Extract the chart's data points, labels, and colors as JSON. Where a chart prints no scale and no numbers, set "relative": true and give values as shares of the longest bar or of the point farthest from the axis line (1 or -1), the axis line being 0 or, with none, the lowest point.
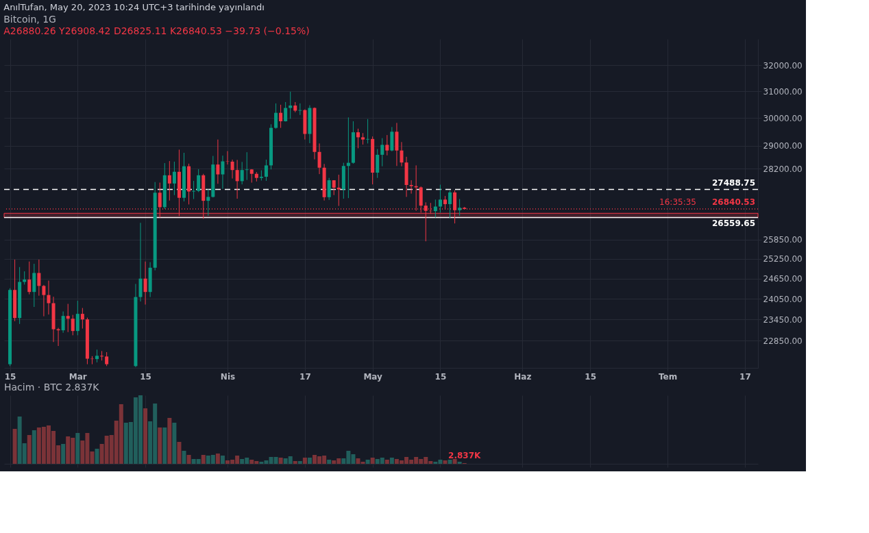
{
  "chart_data": [
    {
      "type": "candlestick",
      "title": "Bitcoin, 1G",
      "subtitle": "A26880.26  Y26908.42  D26825.11  K26840.53  −39.73 (−0.15%)",
      "x": [
        "2023-02-15",
        "2023-02-16",
        "2023-02-17",
        "2023-02-18",
        "2023-02-19",
        "2023-02-20",
        "2023-02-21",
        "2023-02-22",
        "2023-02-23",
        "2023-02-24",
        "2023-02-25",
        "2023-02-26",
        "2023-02-27",
        "2023-02-28",
        "2023-03-01",
        "2023-03-02",
        "2023-03-03",
        "2023-03-04",
        "2023-03-05",
        "2023-03-06",
        "2023-03-07",
        "2023-03-13",
        "2023-03-14",
        "2023-03-15",
        "2023-03-16",
        "2023-03-17",
        "2023-03-18",
        "2023-03-19",
        "2023-03-20",
        "2023-03-21",
        "2023-03-22",
        "2023-03-23",
        "2023-03-24",
        "2023-03-25",
        "2023-03-26",
        "2023-03-27",
        "2023-03-28",
        "2023-03-29",
        "2023-03-30",
        "2023-03-31",
        "2023-04-01",
        "2023-04-02",
        "2023-04-03",
        "2023-04-04",
        "2023-04-05",
        "2023-04-06",
        "2023-04-07",
        "2023-04-08",
        "2023-04-09",
        "2023-04-10",
        "2023-04-11",
        "2023-04-12",
        "2023-04-13",
        "2023-04-14",
        "2023-04-15",
        "2023-04-16",
        "2023-04-17",
        "2023-04-18",
        "2023-04-19",
        "2023-04-20",
        "2023-04-21",
        "2023-04-22",
        "2023-04-23",
        "2023-04-24",
        "2023-04-25",
        "2023-04-26",
        "2023-04-27",
        "2023-04-28",
        "2023-04-29",
        "2023-04-30",
        "2023-05-01",
        "2023-05-02",
        "2023-05-03",
        "2023-05-04",
        "2023-05-05",
        "2023-05-06",
        "2023-05-07",
        "2023-05-08",
        "2023-05-09",
        "2023-05-10",
        "2023-05-11",
        "2023-05-12",
        "2023-05-13",
        "2023-05-14",
        "2023-05-15",
        "2023-05-16",
        "2023-05-17",
        "2023-05-18",
        "2023-05-19",
        "2023-05-20"
      ],
      "ohlc": [
        [
          22200,
          24360,
          22150,
          24310
        ],
        [
          24310,
          25230,
          23400,
          23490
        ],
        [
          23490,
          25000,
          23320,
          24550
        ],
        [
          24550,
          24870,
          24470,
          24620
        ],
        [
          24620,
          25170,
          24180,
          24250
        ],
        [
          24250,
          25100,
          23810,
          24820
        ],
        [
          24820,
          25230,
          24140,
          24430
        ],
        [
          24430,
          24460,
          23540,
          24160
        ],
        [
          24160,
          24590,
          23590,
          23920
        ],
        [
          23920,
          24110,
          22810,
          23170
        ],
        [
          23170,
          23210,
          22700,
          23140
        ],
        [
          23140,
          23680,
          23070,
          23550
        ],
        [
          23550,
          23900,
          23090,
          23470
        ],
        [
          23470,
          23580,
          23000,
          23120
        ],
        [
          23120,
          23990,
          23000,
          23610
        ],
        [
          23610,
          23780,
          23190,
          23450
        ],
        [
          23450,
          23500,
          22200,
          22350
        ],
        [
          22350,
          22420,
          22200,
          22340
        ],
        [
          22340,
          22600,
          22250,
          22430
        ],
        [
          22430,
          22560,
          22300,
          22410
        ],
        [
          22410,
          22530,
          22150,
          22200
        ],
        [
          22150,
          24490,
          22120,
          24100
        ],
        [
          24100,
          26390,
          23970,
          24650
        ],
        [
          24650,
          25170,
          23880,
          24250
        ],
        [
          24250,
          25150,
          24100,
          24980
        ],
        [
          24980,
          27740,
          24900,
          27380
        ],
        [
          27380,
          27720,
          26560,
          26900
        ],
        [
          26900,
          28390,
          26840,
          27970
        ],
        [
          27970,
          28460,
          27120,
          27690
        ],
        [
          27690,
          28440,
          27300,
          28090
        ],
        [
          28090,
          28860,
          26610,
          27210
        ],
        [
          27210,
          28750,
          27090,
          28280
        ],
        [
          28280,
          28370,
          26990,
          27420
        ],
        [
          27420,
          27780,
          27170,
          27440
        ],
        [
          27440,
          28180,
          27400,
          27970
        ],
        [
          27970,
          28020,
          26520,
          27110
        ],
        [
          27110,
          27500,
          26620,
          27240
        ],
        [
          27240,
          28640,
          27220,
          28340
        ],
        [
          28340,
          29220,
          27680,
          28000
        ],
        [
          28000,
          28650,
          27510,
          28450
        ],
        [
          28450,
          28810,
          28340,
          28440
        ],
        [
          28440,
          28510,
          27860,
          28150
        ],
        [
          28150,
          28500,
          27180,
          27770
        ],
        [
          27770,
          28430,
          27660,
          28150
        ],
        [
          28150,
          28770,
          27810,
          28170
        ],
        [
          28170,
          28180,
          27720,
          28020
        ],
        [
          28020,
          28080,
          27760,
          27880
        ],
        [
          27880,
          28140,
          27790,
          27920
        ],
        [
          27920,
          28510,
          27780,
          28310
        ],
        [
          28310,
          29770,
          28170,
          29640
        ],
        [
          29640,
          30540,
          29610,
          30190
        ],
        [
          30190,
          30490,
          29640,
          29880
        ],
        [
          29880,
          30590,
          29870,
          30370
        ],
        [
          30370,
          30980,
          29970,
          30460
        ],
        [
          30460,
          30590,
          30210,
          30270
        ],
        [
          30270,
          30540,
          30110,
          30290
        ],
        [
          30290,
          30320,
          29220,
          29420
        ],
        [
          29420,
          30470,
          29090,
          30370
        ],
        [
          30370,
          30390,
          28520,
          28780
        ],
        [
          28780,
          29080,
          28010,
          28230
        ],
        [
          28230,
          28360,
          27120,
          27230
        ],
        [
          27230,
          27880,
          27140,
          27800
        ],
        [
          27800,
          27800,
          27300,
          27550
        ],
        [
          27550,
          27990,
          26940,
          27490
        ],
        [
          27490,
          28400,
          27180,
          28290
        ],
        [
          28290,
          30020,
          27200,
          28400
        ],
        [
          28400,
          29880,
          28370,
          29480
        ],
        [
          29480,
          29610,
          28910,
          29300
        ],
        [
          29300,
          29450,
          29040,
          29220
        ],
        [
          29220,
          29960,
          29080,
          29240
        ],
        [
          29240,
          29330,
          27660,
          28060
        ],
        [
          28060,
          28880,
          27880,
          28680
        ],
        [
          28680,
          29270,
          28280,
          29030
        ],
        [
          29030,
          29380,
          28660,
          28830
        ],
        [
          28830,
          29670,
          28800,
          29500
        ],
        [
          29500,
          29820,
          28290,
          28830
        ],
        [
          28830,
          29130,
          28280,
          28410
        ],
        [
          28410,
          28610,
          27240,
          27640
        ],
        [
          27640,
          27800,
          27350,
          27600
        ],
        [
          27600,
          28310,
          26780,
          27560
        ],
        [
          27560,
          27590,
          26720,
          26950
        ],
        [
          26950,
          27060,
          25800,
          26780
        ],
        [
          26780,
          27040,
          26680,
          26770
        ],
        [
          26770,
          27150,
          26560,
          26920
        ],
        [
          26920,
          27650,
          26720,
          27150
        ],
        [
          27150,
          27270,
          26820,
          27000
        ],
        [
          27000,
          27450,
          26540,
          27390
        ],
        [
          27390,
          27460,
          26370,
          26800
        ],
        [
          26800,
          27170,
          26620,
          26880.26
        ],
        [
          26880.26,
          26908.42,
          26825.11,
          26840.53
        ]
      ],
      "colors": [
        "#089981",
        "#f23645",
        "#089981",
        "#089981",
        "#f23645",
        "#089981",
        "#f23645",
        "#f23645",
        "#f23645",
        "#f23645",
        "#f23645",
        "#089981",
        "#f23645",
        "#f23645",
        "#089981",
        "#f23645",
        "#f23645",
        "#f23645",
        "#089981",
        "#f23645",
        "#f23645",
        "#089981",
        "#089981",
        "#f23645",
        "#089981",
        "#089981",
        "#f23645",
        "#089981",
        "#f23645",
        "#089981",
        "#f23645",
        "#089981",
        "#f23645",
        "#089981",
        "#089981",
        "#f23645",
        "#089981",
        "#089981",
        "#f23645",
        "#089981",
        "#f23645",
        "#f23645",
        "#f23645",
        "#089981",
        "#089981",
        "#f23645",
        "#f23645",
        "#089981",
        "#089981",
        "#089981",
        "#089981",
        "#f23645",
        "#089981",
        "#089981",
        "#f23645",
        "#089981",
        "#f23645",
        "#089981",
        "#f23645",
        "#f23645",
        "#f23645",
        "#089981",
        "#f23645",
        "#f23645",
        "#089981",
        "#089981",
        "#089981",
        "#f23645",
        "#f23645",
        "#089981",
        "#f23645",
        "#089981",
        "#089981",
        "#f23645",
        "#089981",
        "#f23645",
        "#f23645",
        "#f23645",
        "#f23645",
        "#f23645",
        "#f23645",
        "#f23645",
        "#f23645",
        "#089981",
        "#089981",
        "#f23645",
        "#089981",
        "#f23645",
        "#089981",
        "#f23645"
      ],
      "log": "y",
      "ylim": [
        22100,
        33040
      ],
      "yticks": [
        {
          "value": 22850,
          "label": "22850.00"
        },
        {
          "value": 23450,
          "label": "23450.00"
        },
        {
          "value": 24050,
          "label": "24050.00"
        },
        {
          "value": 24650,
          "label": "24650.00"
        },
        {
          "value": 25250,
          "label": "25250.00"
        },
        {
          "value": 25850,
          "label": "25850.00"
        },
        {
          "value": 28200,
          "label": "28200.00"
        },
        {
          "value": 29000,
          "label": "29000.00"
        },
        {
          "value": 30000,
          "label": "30000.00"
        },
        {
          "value": 31000,
          "label": "31000.00"
        },
        {
          "value": 32000,
          "label": "32000.00"
        }
      ],
      "xlim": [
        "2023-02-14T12:00",
        "2023-07-19"
      ],
      "xticks": [
        {
          "value": "2023-02-15",
          "label": "15"
        },
        {
          "value": "2023-03-01",
          "label": "Mar"
        },
        {
          "value": "2023-03-15",
          "label": "15"
        },
        {
          "value": "2023-04-01",
          "label": "Nis"
        },
        {
          "value": "2023-04-17",
          "label": "17"
        },
        {
          "value": "2023-05-01",
          "label": "May"
        },
        {
          "value": "2023-05-15",
          "label": "15"
        },
        {
          "value": "2023-06-01",
          "label": "Haz"
        },
        {
          "value": "2023-06-15",
          "label": "15"
        },
        {
          "value": "2023-07-01",
          "label": "Tem"
        },
        {
          "value": "2023-07-17",
          "label": "17"
        }
      ],
      "grid": true,
      "ref_lines": [
        {
          "axis": "y",
          "value": 27488.75,
          "label": "27488.75",
          "color": "#ffffff",
          "line_style": "dashed"
        },
        {
          "axis": "y",
          "value": 26840.53,
          "label": "26840.53",
          "color": "#f23645",
          "line_style": "dotted"
        },
        {
          "axis": "y",
          "value": 26559.65,
          "label": "26559.65",
          "color": "#ffffff",
          "line_style": "solid"
        }
      ],
      "bands": [
        {
          "axis": "y",
          "from": 26560,
          "to": 26700,
          "color": "#f23645"
        }
      ],
      "annotations": [
        "AnılTufan, May 20, 2023 10:24 UTC+3 tarihinde yayınlandı",
        {
          "text": "16:35:35",
          "y": 26840.53
        }
      ]
    },
    {
      "type": "bar",
      "title": "Hacim · BTC 2.837K",
      "relative": true,
      "x": [
        "2023-02-16",
        "2023-02-17",
        "2023-02-18",
        "2023-02-19",
        "2023-02-20",
        "2023-02-21",
        "2023-02-22",
        "2023-02-23",
        "2023-02-24",
        "2023-02-25",
        "2023-02-26",
        "2023-02-27",
        "2023-02-28",
        "2023-03-01",
        "2023-03-02",
        "2023-03-03",
        "2023-03-04",
        "2023-03-05",
        "2023-03-06",
        "2023-03-07",
        "2023-03-08",
        "2023-03-09",
        "2023-03-10",
        "2023-03-11",
        "2023-03-12",
        "2023-03-13",
        "2023-03-14",
        "2023-03-15",
        "2023-03-16",
        "2023-03-17",
        "2023-03-18",
        "2023-03-19",
        "2023-03-20",
        "2023-03-21",
        "2023-03-22",
        "2023-03-23",
        "2023-03-24",
        "2023-03-25",
        "2023-03-26",
        "2023-03-27",
        "2023-03-28",
        "2023-03-29",
        "2023-03-30",
        "2023-03-31",
        "2023-04-01",
        "2023-04-02",
        "2023-04-03",
        "2023-04-04",
        "2023-04-05",
        "2023-04-06",
        "2023-04-07",
        "2023-04-08",
        "2023-04-09",
        "2023-04-10",
        "2023-04-11",
        "2023-04-12",
        "2023-04-13",
        "2023-04-14",
        "2023-04-15",
        "2023-04-16",
        "2023-04-17",
        "2023-04-18",
        "2023-04-19",
        "2023-04-20",
        "2023-04-21",
        "2023-04-22",
        "2023-04-23",
        "2023-04-24",
        "2023-04-25",
        "2023-04-26",
        "2023-04-27",
        "2023-04-28",
        "2023-04-29",
        "2023-04-30",
        "2023-05-01",
        "2023-05-02",
        "2023-05-03",
        "2023-05-04",
        "2023-05-05",
        "2023-05-06",
        "2023-05-07",
        "2023-05-08",
        "2023-05-09",
        "2023-05-10",
        "2023-05-11",
        "2023-05-12",
        "2023-05-13",
        "2023-05-14",
        "2023-05-15",
        "2023-05-16",
        "2023-05-17",
        "2023-05-18",
        "2023-05-19",
        "2023-05-20"
      ],
      "values": [
        0.51,
        0.69,
        0.3,
        0.42,
        0.49,
        0.53,
        0.54,
        0.56,
        0.48,
        0.27,
        0.29,
        0.4,
        0.38,
        0.45,
        0.34,
        0.45,
        0.18,
        0.22,
        0.29,
        0.41,
        0.42,
        0.63,
        0.87,
        0.6,
        0.61,
        0.97,
        1,
        0.81,
        0.62,
        0.88,
        0.53,
        0.53,
        0.67,
        0.6,
        0.32,
        0.19,
        0.13,
        0.07,
        0.07,
        0.13,
        0.12,
        0.13,
        0.15,
        0.12,
        0.05,
        0.06,
        0.12,
        0.07,
        0.09,
        0.06,
        0.04,
        0.03,
        0.05,
        0.1,
        0.1,
        0.09,
        0.08,
        0.11,
        0.04,
        0.04,
        0.09,
        0.09,
        0.13,
        0.11,
        0.12,
        0.06,
        0.05,
        0.08,
        0.08,
        0.19,
        0.14,
        0.08,
        0.03,
        0.06,
        0.09,
        0.07,
        0.09,
        0.06,
        0.09,
        0.07,
        0.05,
        0.1,
        0.06,
        0.1,
        0.07,
        0.1,
        0.04,
        0.03,
        0.06,
        0.05,
        0.06,
        0.07,
        0.03,
        0.01
      ],
      "colors": [
        "#7b3338",
        "#215f5c",
        "#215f5c",
        "#7b3338",
        "#215f5c",
        "#7b3338",
        "#7b3338",
        "#7b3338",
        "#7b3338",
        "#7b3338",
        "#215f5c",
        "#7b3338",
        "#7b3338",
        "#215f5c",
        "#7b3338",
        "#7b3338",
        "#7b3338",
        "#215f5c",
        "#7b3338",
        "#7b3338",
        "#7b3338",
        "#7b3338",
        "#7b3338",
        "#215f5c",
        "#215f5c",
        "#215f5c",
        "#215f5c",
        "#7b3338",
        "#215f5c",
        "#215f5c",
        "#7b3338",
        "#215f5c",
        "#7b3338",
        "#215f5c",
        "#7b3338",
        "#215f5c",
        "#7b3338",
        "#215f5c",
        "#215f5c",
        "#7b3338",
        "#215f5c",
        "#215f5c",
        "#7b3338",
        "#215f5c",
        "#7b3338",
        "#7b3338",
        "#7b3338",
        "#215f5c",
        "#215f5c",
        "#7b3338",
        "#7b3338",
        "#215f5c",
        "#215f5c",
        "#215f5c",
        "#215f5c",
        "#7b3338",
        "#215f5c",
        "#215f5c",
        "#7b3338",
        "#215f5c",
        "#7b3338",
        "#215f5c",
        "#7b3338",
        "#7b3338",
        "#7b3338",
        "#215f5c",
        "#7b3338",
        "#7b3338",
        "#215f5c",
        "#215f5c",
        "#215f5c",
        "#7b3338",
        "#7b3338",
        "#215f5c",
        "#7b3338",
        "#215f5c",
        "#215f5c",
        "#7b3338",
        "#215f5c",
        "#7b3338",
        "#7b3338",
        "#7b3338",
        "#7b3338",
        "#7b3338",
        "#7b3338",
        "#7b3338",
        "#7b3338",
        "#215f5c",
        "#215f5c",
        "#7b3338",
        "#215f5c",
        "#7b3338",
        "#215f5c",
        "#7b3338"
      ],
      "xlim": [
        "2023-02-14T12:00",
        "2023-07-19"
      ],
      "xticks": [
        {
          "value": "2023-02-15",
          "label": null
        },
        {
          "value": "2023-03-01",
          "label": null
        },
        {
          "value": "2023-03-15",
          "label": null
        },
        {
          "value": "2023-04-01",
          "label": null
        },
        {
          "value": "2023-04-17",
          "label": null
        },
        {
          "value": "2023-05-01",
          "label": null
        },
        {
          "value": "2023-05-15",
          "label": null
        },
        {
          "value": "2023-06-01",
          "label": null
        },
        {
          "value": "2023-06-15",
          "label": null
        },
        {
          "value": "2023-07-01",
          "label": null
        },
        {
          "value": "2023-07-17",
          "label": null
        }
      ],
      "tick_labels": false,
      "grid": "x",
      "annotations": [
        {
          "text": "2.837K",
          "x": "2023-05-20",
          "y": 0.01
        }
      ]
    }
  ]
}
